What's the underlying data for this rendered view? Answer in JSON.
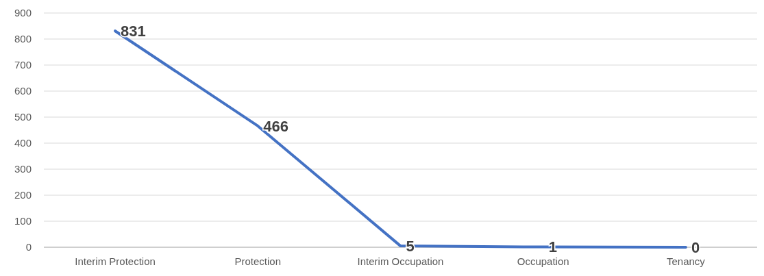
{
  "chart_data": {
    "type": "line",
    "categories": [
      "Interim Protection",
      "Protection",
      "Interim Occupation",
      "Occupation",
      "Tenancy"
    ],
    "series": [
      {
        "color": "#4472c4",
        "values": [
          831,
          466,
          5,
          1,
          0
        ]
      }
    ],
    "ylim": [
      0,
      900
    ],
    "yticks": [
      0,
      100,
      200,
      300,
      400,
      500,
      600,
      700,
      800,
      900
    ],
    "grid": "y",
    "data_labels": true,
    "marker": "none",
    "line_style": "solid"
  }
}
